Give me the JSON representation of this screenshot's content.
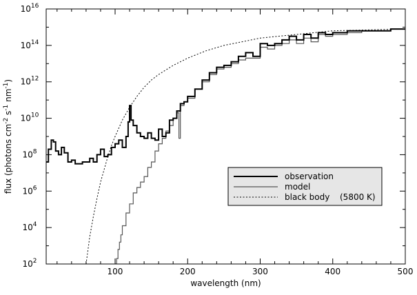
{
  "chart_data": {
    "type": "line",
    "xlabel": "wavelength (nm)",
    "ylabel": {
      "prefix": "flux (photons cm",
      "exp1": "-2",
      "mid1": " s",
      "exp2": "-1",
      "mid2": " nm",
      "exp3": "-1",
      "suffix": ")"
    },
    "x_scale": "linear",
    "y_scale": "log",
    "xlim": [
      5,
      500
    ],
    "ylim_log10": [
      2,
      16
    ],
    "x_ticks": [
      100,
      200,
      300,
      400,
      500
    ],
    "x_tick_labels": [
      "100",
      "200",
      "300",
      "400",
      "500"
    ],
    "y_ticks_log10": [
      2,
      4,
      6,
      8,
      10,
      12,
      14,
      16
    ],
    "y_tick_labels": [
      {
        "base": "10",
        "exp": "2"
      },
      {
        "base": "10",
        "exp": "4"
      },
      {
        "base": "10",
        "exp": "6"
      },
      {
        "base": "10",
        "exp": "8"
      },
      {
        "base": "10",
        "exp": "10"
      },
      {
        "base": "10",
        "exp": "12"
      },
      {
        "base": "10",
        "exp": "14"
      },
      {
        "base": "10",
        "exp": "16"
      }
    ],
    "grid": false,
    "legend_position": "center-right",
    "legend": {
      "entries": [
        "observation",
        "model",
        "black body"
      ],
      "black_body_note": "(5800 K)"
    },
    "series": [
      {
        "name": "observation",
        "color": "#000000",
        "style": "solid-thick",
        "x": [
          5,
          8,
          12,
          15,
          18,
          22,
          26,
          30,
          35,
          40,
          45,
          50,
          55,
          60,
          65,
          70,
          75,
          80,
          85,
          90,
          95,
          100,
          105,
          110,
          115,
          118,
          120,
          122,
          125,
          130,
          135,
          140,
          145,
          150,
          155,
          160,
          165,
          170,
          175,
          180,
          185,
          190,
          195,
          200,
          210,
          220,
          230,
          240,
          250,
          260,
          270,
          280,
          290,
          300,
          310,
          320,
          330,
          340,
          350,
          360,
          370,
          380,
          390,
          400,
          420,
          440,
          460,
          480,
          500
        ],
        "log10_y": [
          7.6,
          8.3,
          8.8,
          8.7,
          8.2,
          8.0,
          8.4,
          8.1,
          7.6,
          7.7,
          7.5,
          7.5,
          7.6,
          7.6,
          7.8,
          7.6,
          8.0,
          8.3,
          7.9,
          8.0,
          8.4,
          8.6,
          8.8,
          8.4,
          9.0,
          9.8,
          10.7,
          9.9,
          9.6,
          9.2,
          9.0,
          8.9,
          9.2,
          8.9,
          8.8,
          9.4,
          9.0,
          9.2,
          9.9,
          10.0,
          10.4,
          10.8,
          10.9,
          11.2,
          11.6,
          12.1,
          12.5,
          12.8,
          12.9,
          13.1,
          13.4,
          13.6,
          13.4,
          14.1,
          14.0,
          14.1,
          14.3,
          14.5,
          14.3,
          14.6,
          14.4,
          14.7,
          14.6,
          14.7,
          14.8,
          14.8,
          14.8,
          14.9,
          14.9
        ]
      },
      {
        "name": "model",
        "color": "#555555",
        "style": "solid-thin",
        "x": [
          100,
          102,
          104,
          106,
          108,
          110,
          115,
          120,
          125,
          130,
          135,
          140,
          145,
          150,
          155,
          160,
          165,
          170,
          175,
          180,
          185,
          188,
          190,
          195,
          200,
          210,
          220,
          230,
          240,
          250,
          260,
          270,
          280,
          290,
          300,
          310,
          320,
          330,
          340,
          350,
          360,
          370,
          380,
          390,
          400,
          420,
          440,
          460,
          480,
          500
        ],
        "log10_y": [
          2.0,
          2.3,
          2.8,
          3.2,
          3.6,
          4.1,
          4.8,
          5.3,
          5.9,
          6.2,
          6.5,
          6.8,
          7.3,
          7.6,
          8.2,
          8.6,
          8.9,
          9.3,
          9.6,
          10.0,
          10.3,
          8.9,
          10.7,
          10.9,
          11.1,
          11.6,
          12.0,
          12.4,
          12.7,
          12.8,
          13.0,
          13.2,
          13.3,
          13.3,
          13.9,
          13.8,
          14.0,
          14.1,
          14.3,
          14.1,
          14.4,
          14.2,
          14.6,
          14.5,
          14.6,
          14.7,
          14.8,
          14.8,
          14.9,
          14.9
        ]
      },
      {
        "name": "black body",
        "color": "#000000",
        "style": "dotted",
        "x": [
          60,
          65,
          70,
          75,
          80,
          85,
          90,
          95,
          100,
          110,
          120,
          130,
          140,
          150,
          160,
          180,
          200,
          225,
          250,
          275,
          300,
          325,
          350,
          400,
          450,
          500
        ],
        "log10_y": [
          2.0,
          3.5,
          4.6,
          5.6,
          6.5,
          7.2,
          7.9,
          8.5,
          9.0,
          9.9,
          10.6,
          11.2,
          11.7,
          12.1,
          12.4,
          12.9,
          13.3,
          13.7,
          14.0,
          14.2,
          14.4,
          14.5,
          14.6,
          14.8,
          14.85,
          14.9
        ]
      }
    ]
  }
}
